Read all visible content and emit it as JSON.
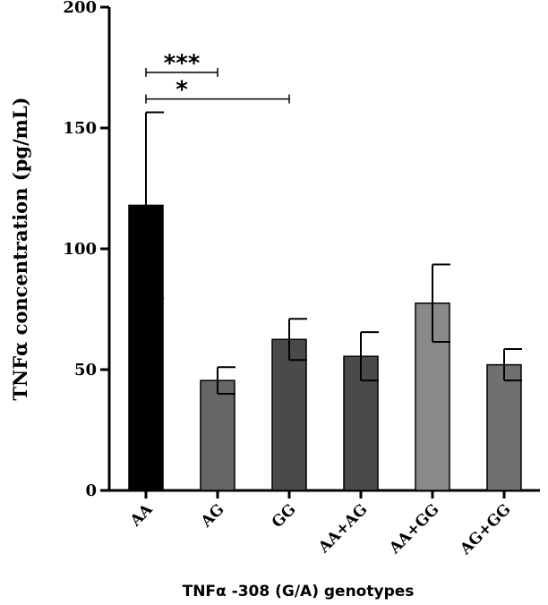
{
  "chart_data": {
    "type": "bar",
    "title": "",
    "xlabel": "TNFα -308 (G/A) genotypes",
    "ylabel": "TNFα concentration (pg/mL)",
    "ylim": [
      0,
      200
    ],
    "yticks": [
      0,
      50,
      100,
      150,
      200
    ],
    "categories": [
      "AA",
      "AG",
      "GG",
      "AA+AG",
      "AA+GG",
      "AG+GG"
    ],
    "values": [
      118,
      45.5,
      62.5,
      55.5,
      77.5,
      52
    ],
    "error": [
      38.5,
      5.5,
      8.5,
      10,
      16,
      6.5
    ],
    "bar_colors": [
      "#000000",
      "#666666",
      "#4a4a4a",
      "#4a4a4a",
      "#8a8a8a",
      "#707070"
    ],
    "grid": false,
    "annotations": [
      {
        "from": "AA",
        "to": "AG",
        "y": 173,
        "label": "***"
      },
      {
        "from": "AA",
        "to": "GG",
        "y": 162,
        "label": "*"
      }
    ]
  }
}
